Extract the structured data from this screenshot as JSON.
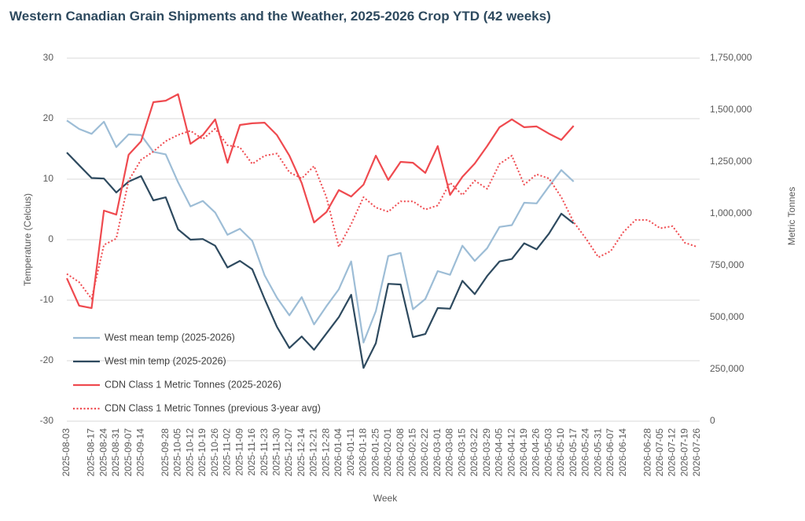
{
  "chart_data": {
    "type": "line",
    "title": "Western Canadian Grain Shipments and the Weather, 2025-2026 Crop YTD (42 weeks)",
    "x_label": "Week",
    "y_label": "Temperature (Celcius)",
    "y2_label": "Metric Tonnes",
    "categories": [
      "2025-08-03",
      null,
      "2025-08-17",
      "2025-08-24",
      "2025-08-31",
      "2025-09-07",
      "2025-09-14",
      null,
      "2025-09-28",
      "2025-10-05",
      "2025-10-12",
      "2025-10-19",
      "2025-10-26",
      "2025-11-02",
      "2025-11-09",
      "2025-11-16",
      "2025-11-23",
      "2025-11-30",
      "2025-12-07",
      "2025-12-14",
      "2025-12-21",
      "2025-12-28",
      "2026-01-04",
      "2026-01-11",
      "2026-01-18",
      "2026-01-25",
      "2026-02-01",
      "2026-02-08",
      "2026-02-15",
      "2026-02-22",
      "2026-03-01",
      "2026-03-08",
      "2026-03-15",
      "2026-03-22",
      "2026-03-29",
      "2026-04-05",
      "2026-04-12",
      "2026-04-19",
      "2026-04-26",
      "2026-05-03",
      "2026-05-10",
      "2026-05-17",
      "2026-05-24",
      "2026-05-31",
      "2026-06-07",
      "2026-06-14",
      null,
      "2026-06-28",
      "2026-07-05",
      "2026-07-12",
      "2026-07-19",
      "2026-07-26"
    ],
    "ylim": [
      -30,
      30
    ],
    "yticks": [
      -30,
      -20,
      -10,
      0,
      10,
      20,
      30
    ],
    "y2lim": [
      0,
      1750000
    ],
    "y2ticks": [
      0,
      {
        "value": 250000,
        "label": "250,000"
      },
      {
        "value": 500000,
        "label": "500,000"
      },
      {
        "value": 750000,
        "label": "750,000"
      },
      {
        "value": 1000000,
        "label": "1,000,000"
      },
      {
        "value": 1250000,
        "label": "1,250,000"
      },
      {
        "value": 1500000,
        "label": "1,500,000"
      },
      {
        "value": 1750000,
        "label": "1,750,000"
      }
    ],
    "grid": true,
    "legend": "lower left",
    "series": [
      {
        "name": "West mean temp (2025-2026)",
        "color": "#9dbdd6",
        "line_style": "solid",
        "axis": "y",
        "values": [
          19.7,
          18.3,
          17.5,
          19.5,
          15.3,
          17.4,
          17.3,
          14.5,
          14.1,
          9.5,
          5.5,
          6.4,
          4.5,
          0.8,
          1.8,
          -0.2,
          -5.9,
          -9.6,
          -12.5,
          -9.5,
          -14.0,
          -11.0,
          -8.2,
          -3.6,
          -17.0,
          -11.8,
          -2.7,
          -2.2,
          -11.5,
          -9.8,
          -5.2,
          -5.8,
          -1.0,
          -3.5,
          -1.4,
          2.1,
          2.4,
          6.1,
          6.0,
          8.8,
          11.5,
          9.6,
          null,
          null,
          null,
          null,
          null,
          null,
          null,
          null,
          null,
          null
        ]
      },
      {
        "name": "West min temp (2025-2026)",
        "color": "#2e4a5f",
        "line_style": "solid",
        "axis": "y",
        "values": [
          14.4,
          12.3,
          10.2,
          10.1,
          7.8,
          9.6,
          10.5,
          6.5,
          7.0,
          1.7,
          0.0,
          0.1,
          -1.0,
          -4.6,
          -3.5,
          -4.9,
          -9.8,
          -14.4,
          -17.9,
          -16.0,
          -18.2,
          -15.5,
          -12.8,
          -9.1,
          -21.2,
          -17.1,
          -7.3,
          -7.4,
          -16.1,
          -15.6,
          -11.3,
          -11.4,
          -6.8,
          -9.0,
          -6.0,
          -3.6,
          -3.2,
          -0.6,
          -1.6,
          1.0,
          4.3,
          2.7,
          null,
          null,
          null,
          null,
          null,
          null,
          null,
          null,
          null,
          null
        ]
      },
      {
        "name": "CDN Class 1 Metric Tonnes (2025-2026)",
        "color": "#ef4a4f",
        "line_style": "solid",
        "axis": "y2",
        "values": [
          689000,
          557000,
          545000,
          1015000,
          996000,
          1284000,
          1349000,
          1538000,
          1545000,
          1576000,
          1337000,
          1379000,
          1455000,
          1246000,
          1428000,
          1436000,
          1439000,
          1379000,
          1280000,
          1148000,
          958000,
          1008000,
          1114000,
          1083000,
          1140000,
          1280000,
          1163000,
          1250000,
          1246000,
          1197000,
          1326000,
          1091000,
          1178000,
          1242000,
          1326000,
          1417000,
          1455000,
          1417000,
          1421000,
          1386000,
          1356000,
          1424000,
          null,
          null,
          null,
          null,
          null,
          null,
          null,
          null,
          null,
          null
        ]
      },
      {
        "name": "CDN Class 1 Metric Tonnes (previous 3-year avg)",
        "color": "#ef4a4f",
        "line_style": "dotted",
        "axis": "y2",
        "values": [
          710000,
          670000,
          590000,
          850000,
          880000,
          1160000,
          1260000,
          1300000,
          1350000,
          1380000,
          1400000,
          1360000,
          1410000,
          1330000,
          1320000,
          1240000,
          1280000,
          1290000,
          1200000,
          1170000,
          1230000,
          1080000,
          840000,
          950000,
          1080000,
          1030000,
          1010000,
          1060000,
          1060000,
          1020000,
          1040000,
          1150000,
          1090000,
          1160000,
          1120000,
          1240000,
          1280000,
          1140000,
          1190000,
          1170000,
          1080000,
          960000,
          880000,
          790000,
          820000,
          910000,
          970000,
          970000,
          930000,
          940000,
          860000,
          840000
        ]
      }
    ]
  }
}
